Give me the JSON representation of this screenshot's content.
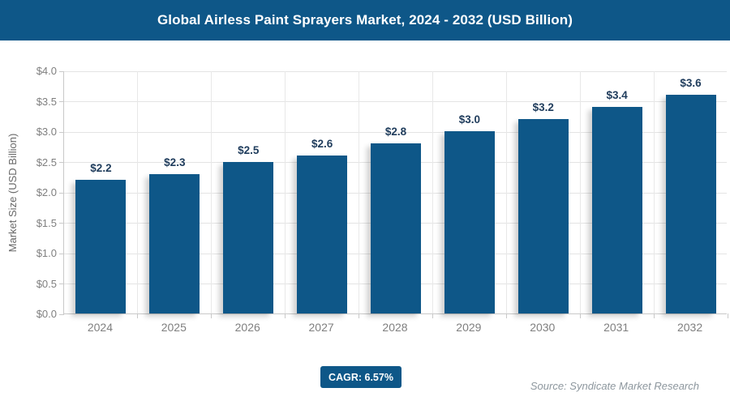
{
  "header": {
    "title": "Global Airless Paint Sprayers Market, 2024 - 2032 (USD Billion)"
  },
  "chart_data": {
    "type": "bar",
    "title": "Global Airless Paint Sprayers Market, 2024 - 2032 (USD Billion)",
    "categories": [
      "2024",
      "2025",
      "2026",
      "2027",
      "2028",
      "2029",
      "2030",
      "2031",
      "2032"
    ],
    "values": [
      2.2,
      2.3,
      2.5,
      2.6,
      2.8,
      3.0,
      3.2,
      3.4,
      3.6
    ],
    "bar_labels": [
      "$2.2",
      "$2.3",
      "$2.5",
      "$2.6",
      "$2.8",
      "$3.0",
      "$3.2",
      "$3.4",
      "$3.6"
    ],
    "xlabel": "",
    "ylabel": "Market Size (USD Billion)",
    "ylim": [
      0,
      4
    ],
    "yticks": [
      0,
      0.5,
      1,
      1.5,
      2,
      2.5,
      3,
      3.5,
      4
    ],
    "ytick_labels": [
      "$0.0",
      "$0.5",
      "$1.0",
      "$1.5",
      "$2.0",
      "$2.5",
      "$3.0",
      "$3.5",
      "$4.0"
    ],
    "grid": true,
    "legend": "none",
    "bar_color": "#0e5788"
  },
  "footer": {
    "cagr_label": "CAGR: 6.57%",
    "source": "Source: Syndicate Market Research"
  },
  "colors": {
    "accent": "#0e5788",
    "value_label": "#1f3c5c",
    "axis_text": "#7f7f7f",
    "gridline": "#e4e4e4",
    "source_text": "#8d979e"
  }
}
